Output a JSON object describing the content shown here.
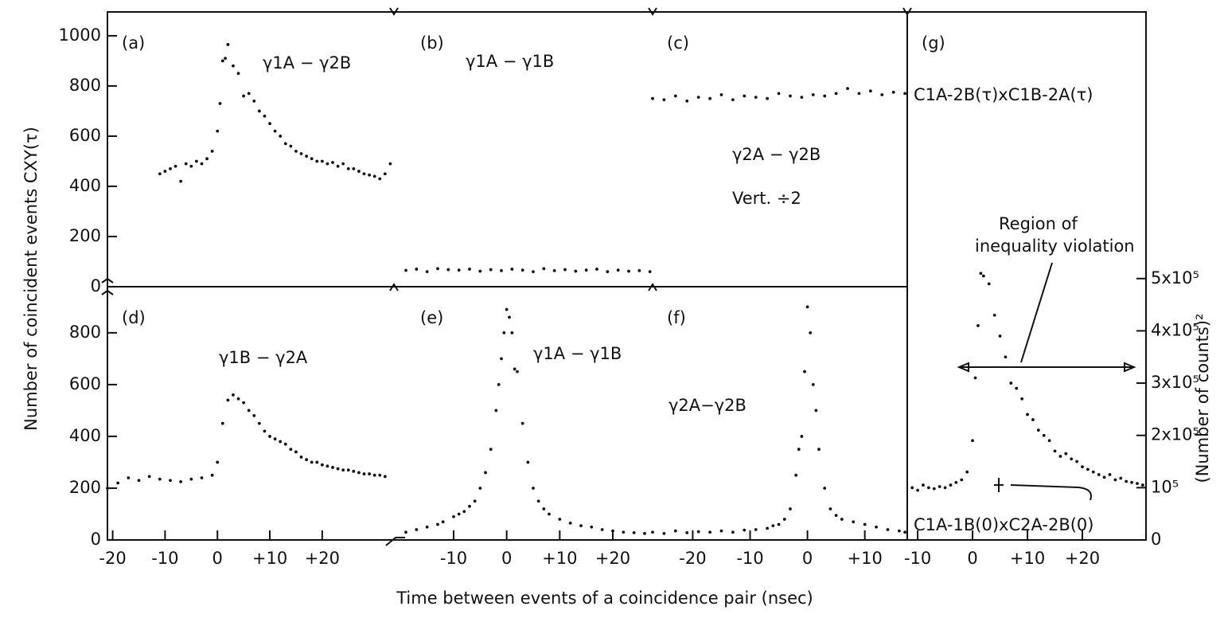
{
  "xlabel": "Time between events of a coincidence pair (nsec)",
  "ylabel": "Number of coincident events CXY(τ)",
  "y2label": "(Number of counts)²",
  "chart_data": [
    {
      "type": "scatter",
      "label": "(a)",
      "annotations": [
        "γ1A − γ2B"
      ],
      "xlim": [
        -21,
        34
      ],
      "ylim": [
        0,
        1095
      ],
      "yticks": [
        0,
        200,
        400,
        600,
        800,
        1000
      ],
      "color": "#111111",
      "x": [
        -11,
        -10,
        -9,
        -8,
        -7,
        -6,
        -5,
        -4,
        -3,
        -2,
        -1,
        0,
        0.5,
        1,
        1.5,
        2,
        3,
        4,
        5,
        6,
        7,
        8,
        9,
        10,
        11,
        12,
        13,
        14,
        15,
        16,
        17,
        18,
        19,
        20,
        21,
        22,
        23,
        24,
        25,
        26,
        27,
        28,
        29,
        30,
        31,
        32,
        33
      ],
      "values": [
        450,
        460,
        470,
        480,
        420,
        490,
        480,
        500,
        490,
        510,
        540,
        620,
        730,
        900,
        910,
        965,
        880,
        850,
        760,
        770,
        740,
        700,
        680,
        650,
        620,
        600,
        570,
        560,
        540,
        530,
        520,
        510,
        500,
        500,
        490,
        495,
        480,
        490,
        470,
        470,
        460,
        450,
        445,
        440,
        430,
        450,
        490
      ]
    },
    {
      "type": "scatter",
      "label": "(b)",
      "annotations": [
        "γ1A − γ1B"
      ],
      "xlim": [
        -19,
        27.5
      ],
      "ylim": [
        0,
        1095
      ],
      "color": "#111111",
      "x": [
        -19,
        -17,
        -15,
        -13,
        -11,
        -9,
        -7,
        -5,
        -3,
        -1,
        1,
        3,
        5,
        7,
        9,
        11,
        13,
        15,
        17,
        19,
        21,
        23,
        25,
        27
      ],
      "values": [
        65,
        70,
        60,
        72,
        68,
        66,
        70,
        62,
        68,
        64,
        70,
        66,
        60,
        72,
        64,
        68,
        62,
        66,
        70,
        60,
        66,
        62,
        64,
        60
      ]
    },
    {
      "type": "scatter",
      "label": "(c)",
      "annotations": [
        "γ2A − γ2B",
        "Vert. ÷2"
      ],
      "xlim": [
        -27,
        17.4
      ],
      "ylim": [
        0,
        1095
      ],
      "color": "#111111",
      "x": [
        -27,
        -25,
        -23,
        -21,
        -19,
        -17,
        -15,
        -13,
        -11,
        -9,
        -7,
        -5,
        -3,
        -1,
        1,
        3,
        5,
        7,
        9,
        11,
        13,
        15,
        17
      ],
      "values": [
        750,
        745,
        760,
        740,
        755,
        750,
        765,
        745,
        760,
        755,
        750,
        770,
        760,
        755,
        765,
        760,
        770,
        790,
        770,
        780,
        765,
        775,
        770
      ]
    },
    {
      "type": "scatter",
      "label": "(d)",
      "annotations": [
        "γ1B − γ2A"
      ],
      "xlim": [
        -21,
        34
      ],
      "ylim": [
        0,
        978
      ],
      "yticks": [
        0,
        200,
        400,
        600,
        800
      ],
      "xticks": [
        -20,
        -10,
        0,
        {
          "value": 10,
          "label": "+10"
        },
        {
          "value": 20,
          "label": "+20"
        }
      ],
      "color": "#111111",
      "x": [
        -21,
        -19,
        -17,
        -15,
        -13,
        -11,
        -9,
        -7,
        -5,
        -3,
        -1,
        0,
        1,
        2,
        3,
        4,
        5,
        6,
        7,
        8,
        9,
        10,
        11,
        12,
        13,
        14,
        15,
        16,
        17,
        18,
        19,
        20,
        21,
        22,
        23,
        24,
        25,
        26,
        27,
        28,
        29,
        30,
        31,
        32
      ],
      "values": [
        200,
        220,
        240,
        230,
        245,
        235,
        230,
        225,
        235,
        240,
        250,
        300,
        450,
        540,
        560,
        545,
        530,
        500,
        480,
        450,
        420,
        400,
        390,
        380,
        370,
        350,
        340,
        320,
        310,
        300,
        300,
        290,
        285,
        280,
        275,
        270,
        270,
        265,
        260,
        255,
        255,
        250,
        250,
        245
      ]
    },
    {
      "type": "scatter",
      "label": "(e)",
      "annotations": [
        "γ1A − γ1B"
      ],
      "xlim": [
        -19,
        27.5
      ],
      "ylim": [
        0,
        978
      ],
      "xticks": [
        -10,
        0,
        {
          "value": 10,
          "label": "+10"
        },
        {
          "value": 20,
          "label": "+20"
        }
      ],
      "color": "#111111",
      "x": [
        -19,
        -17,
        -15,
        -13,
        -12,
        -10,
        -9,
        -8,
        -7,
        -6,
        -5,
        -4,
        -3,
        -2,
        -1.5,
        -1,
        -0.5,
        0,
        0.5,
        1,
        1.5,
        2,
        3,
        4,
        5,
        6,
        7,
        8,
        10,
        12,
        14,
        16,
        18,
        20,
        22,
        24,
        26
      ],
      "values": [
        30,
        40,
        50,
        60,
        70,
        90,
        100,
        110,
        130,
        150,
        200,
        260,
        350,
        500,
        600,
        700,
        800,
        890,
        860,
        800,
        660,
        650,
        450,
        300,
        200,
        150,
        120,
        100,
        80,
        65,
        55,
        50,
        40,
        35,
        30,
        28,
        25
      ]
    },
    {
      "type": "scatter",
      "label": "(f)",
      "annotations": [
        "γ2A−γ2B"
      ],
      "xlim": [
        -27,
        17.4
      ],
      "ylim": [
        0,
        978
      ],
      "xticks": [
        -20,
        -10,
        0,
        {
          "value": 10,
          "label": "+10"
        }
      ],
      "color": "#111111",
      "x": [
        -27,
        -25,
        -23,
        -21,
        -19,
        -17,
        -15,
        -13,
        -11,
        -9,
        -7,
        -6,
        -5,
        -4,
        -3,
        -2,
        -1.5,
        -1,
        -0.5,
        0,
        0.5,
        1,
        1.5,
        2,
        3,
        4,
        5,
        6,
        8,
        10,
        12,
        14,
        16,
        17
      ],
      "values": [
        30,
        25,
        35,
        28,
        32,
        30,
        35,
        30,
        38,
        40,
        45,
        55,
        60,
        80,
        120,
        250,
        350,
        400,
        650,
        900,
        800,
        600,
        500,
        350,
        200,
        120,
        95,
        80,
        70,
        60,
        50,
        40,
        35,
        30
      ]
    },
    {
      "type": "scatter",
      "label": "(g)",
      "annotations": [
        "C1A-2B(τ)xC1B-2A(τ)",
        "Region of",
        "inequality violation",
        "C1A-1B(0)xC2A-2B(0)"
      ],
      "xlim": [
        -11.9,
        31.6
      ],
      "ylim": [
        0,
        1010000
      ],
      "y2ticks": [
        0,
        {
          "value": 100000,
          "label": "10⁵"
        },
        {
          "value": 200000,
          "label": "2x10⁵"
        },
        {
          "value": 300000,
          "label": "3x10⁵"
        },
        {
          "value": 400000,
          "label": "4x10⁵"
        },
        {
          "value": 500000,
          "label": "5x10⁵"
        }
      ],
      "xticks": [
        -10,
        0,
        {
          "value": 10,
          "label": "+10"
        },
        {
          "value": 20,
          "label": "+20"
        }
      ],
      "color": "#111111",
      "x": [
        -11,
        -10,
        -9,
        -8,
        -7,
        -6,
        -5,
        -4,
        -3,
        -2,
        -1,
        0,
        0.5,
        1,
        1.5,
        2,
        3,
        4,
        5,
        6,
        7,
        8,
        9,
        10,
        11,
        12,
        13,
        14,
        15,
        16,
        17,
        18,
        19,
        20,
        21,
        22,
        23,
        24,
        25,
        26,
        27,
        28,
        29,
        30,
        31
      ],
      "values": [
        100000,
        95000,
        105000,
        100000,
        98000,
        102000,
        100000,
        105000,
        110000,
        115000,
        130000,
        190000,
        310000,
        410000,
        510000,
        505000,
        490000,
        430000,
        390000,
        350000,
        300000,
        290000,
        270000,
        240000,
        230000,
        210000,
        200000,
        190000,
        170000,
        160000,
        165000,
        155000,
        150000,
        140000,
        135000,
        130000,
        125000,
        120000,
        125000,
        115000,
        118000,
        112000,
        110000,
        108000,
        105000
      ]
    }
  ]
}
